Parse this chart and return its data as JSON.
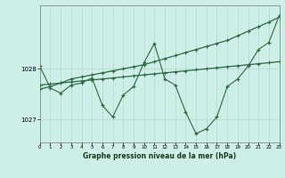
{
  "bg_color": "#ceeee8",
  "grid_color": "#b0d8d0",
  "line_color": "#2d6a3f",
  "title": "Graphe pression niveau de la mer (hPa)",
  "xlim": [
    0,
    23
  ],
  "ylim": [
    1026.55,
    1029.25
  ],
  "yticks": [
    1027,
    1028
  ],
  "xticks": [
    0,
    1,
    2,
    3,
    4,
    5,
    6,
    7,
    8,
    9,
    10,
    11,
    12,
    13,
    14,
    15,
    16,
    17,
    18,
    19,
    20,
    21,
    22,
    23
  ],
  "series1_x": [
    0,
    1,
    2,
    3,
    4,
    5,
    6,
    7,
    8,
    9,
    10,
    11,
    12,
    13,
    14,
    15,
    16,
    17,
    18,
    19,
    20,
    21,
    22,
    23
  ],
  "series1_y": [
    1028.05,
    1027.62,
    1027.52,
    1027.68,
    1027.72,
    1027.82,
    1027.28,
    1027.05,
    1027.48,
    1027.65,
    1028.12,
    1028.5,
    1027.8,
    1027.68,
    1027.15,
    1026.72,
    1026.82,
    1027.05,
    1027.65,
    1027.8,
    1028.05,
    1028.38,
    1028.52,
    1029.05
  ],
  "series2_x": [
    0,
    1,
    2,
    3,
    4,
    5,
    6,
    7,
    8,
    9,
    10,
    11,
    12,
    13,
    14,
    15,
    16,
    17,
    18,
    19,
    20,
    21,
    22,
    23
  ],
  "series2_y": [
    1027.68,
    1027.7,
    1027.72,
    1027.74,
    1027.76,
    1027.78,
    1027.8,
    1027.82,
    1027.84,
    1027.86,
    1027.88,
    1027.9,
    1027.92,
    1027.94,
    1027.96,
    1027.98,
    1028.0,
    1028.02,
    1028.04,
    1028.06,
    1028.08,
    1028.1,
    1028.12,
    1028.14
  ],
  "series3_x": [
    0,
    1,
    2,
    3,
    4,
    5,
    6,
    7,
    8,
    9,
    10,
    11,
    12,
    13,
    14,
    15,
    16,
    17,
    18,
    19,
    20,
    21,
    22,
    23
  ],
  "series3_y": [
    1027.6,
    1027.65,
    1027.72,
    1027.8,
    1027.84,
    1027.88,
    1027.92,
    1027.96,
    1028.0,
    1028.04,
    1028.08,
    1028.14,
    1028.2,
    1028.26,
    1028.32,
    1028.38,
    1028.44,
    1028.5,
    1028.56,
    1028.65,
    1028.74,
    1028.83,
    1028.92,
    1029.02
  ]
}
